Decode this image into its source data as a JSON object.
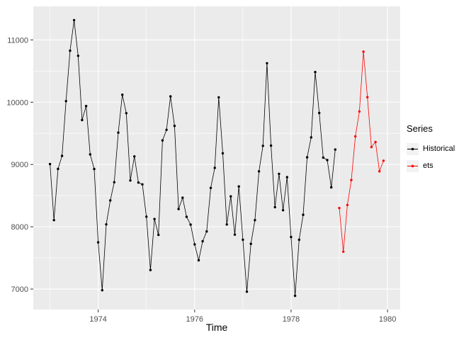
{
  "chart_data": {
    "type": "line",
    "title": "",
    "xlabel": "Time",
    "ylabel": "",
    "legend_title": "Series",
    "legend_position": "right",
    "panel_bg": "#EBEBEB",
    "grid_color": "#FFFFFF",
    "axis_text_color": "#4D4D4D",
    "tick_mark_color": "#333333",
    "x_range": [
      1972.654,
      1980.263
    ],
    "y_range": [
      6671,
      11538
    ],
    "x_ticks": [
      1974,
      1976,
      1978,
      1980
    ],
    "x_minor": [
      1973,
      1975,
      1977,
      1979
    ],
    "y_ticks": [
      7000,
      8000,
      9000,
      10000,
      11000
    ],
    "y_minor": [
      7500,
      8500,
      9500,
      10500
    ],
    "frequency": 12,
    "series": [
      {
        "name": "Historical",
        "color": "#000000",
        "start": 1973.0,
        "values": [
          9007,
          8106,
          8928,
          9137,
          10017,
          10826,
          11317,
          10744,
          9713,
          9938,
          9161,
          8927,
          7750,
          6981,
          8038,
          8422,
          8714,
          9512,
          10120,
          9823,
          8743,
          9129,
          8710,
          8680,
          8162,
          7306,
          8124,
          7870,
          9387,
          9556,
          10093,
          9620,
          8285,
          8466,
          8160,
          8034,
          7717,
          7461,
          7767,
          7925,
          8623,
          8945,
          10078,
          9179,
          8037,
          8488,
          7874,
          8647,
          7792,
          6957,
          7726,
          8106,
          8890,
          9299,
          10625,
          9302,
          8314,
          8850,
          8265,
          8796,
          7836,
          6892,
          7791,
          8192,
          9115,
          9434,
          10484,
          9827,
          9110,
          9070,
          8633,
          9240
        ]
      },
      {
        "name": "ets",
        "color": "#FF0000",
        "start": 1979.0,
        "values": [
          8300,
          7600,
          8350,
          8750,
          9450,
          9850,
          10810,
          10080,
          9280,
          9360,
          8890,
          9060
        ]
      }
    ]
  }
}
